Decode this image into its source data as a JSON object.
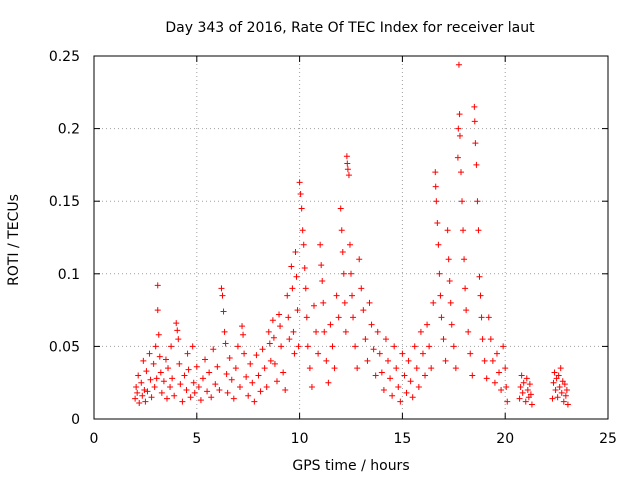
{
  "chart_data": {
    "type": "scatter",
    "title": "Day 343 of 2016, Rate Of TEC Index for receiver laut",
    "xlabel": "GPS time / hours",
    "ylabel": "ROTI / TECUs",
    "xlim": [
      0,
      25
    ],
    "ylim": [
      0,
      0.25
    ],
    "xticks": [
      0,
      5,
      10,
      15,
      20,
      25
    ],
    "xtick_labels": [
      "0",
      "5",
      "10",
      "15",
      "20",
      "25"
    ],
    "yticks": [
      0,
      0.05,
      0.1,
      0.15,
      0.2,
      0.25
    ],
    "ytick_labels": [
      "0",
      "0.05",
      "0.1",
      "0.15",
      "0.2",
      "0.25"
    ],
    "grid": true,
    "marker": "+",
    "color": "#ff0000",
    "series": [
      {
        "name": "ROTI",
        "points": [
          [
            2.0,
            0.014
          ],
          [
            2.05,
            0.022
          ],
          [
            2.1,
            0.018
          ],
          [
            2.15,
            0.03
          ],
          [
            2.2,
            0.011
          ],
          [
            2.3,
            0.025
          ],
          [
            2.35,
            0.016
          ],
          [
            2.4,
            0.04
          ],
          [
            2.45,
            0.02
          ],
          [
            2.5,
            0.012
          ],
          [
            2.55,
            0.033
          ],
          [
            2.6,
            0.019
          ],
          [
            2.7,
            0.045
          ],
          [
            2.75,
            0.027
          ],
          [
            2.8,
            0.015
          ],
          [
            2.9,
            0.038
          ],
          [
            2.95,
            0.022
          ],
          [
            3.0,
            0.05
          ],
          [
            3.05,
            0.028
          ],
          [
            3.1,
            0.092
          ],
          [
            3.1,
            0.075
          ],
          [
            3.15,
            0.058
          ],
          [
            3.2,
            0.043
          ],
          [
            3.25,
            0.032
          ],
          [
            3.3,
            0.018
          ],
          [
            3.4,
            0.026
          ],
          [
            3.5,
            0.041
          ],
          [
            3.55,
            0.014
          ],
          [
            3.6,
            0.035
          ],
          [
            3.7,
            0.022
          ],
          [
            3.75,
            0.05
          ],
          [
            3.8,
            0.028
          ],
          [
            3.9,
            0.016
          ],
          [
            4.0,
            0.066
          ],
          [
            4.05,
            0.061
          ],
          [
            4.1,
            0.055
          ],
          [
            4.15,
            0.038
          ],
          [
            4.2,
            0.024
          ],
          [
            4.3,
            0.012
          ],
          [
            4.4,
            0.03
          ],
          [
            4.5,
            0.02
          ],
          [
            4.55,
            0.045
          ],
          [
            4.6,
            0.034
          ],
          [
            4.7,
            0.015
          ],
          [
            4.8,
            0.05
          ],
          [
            4.85,
            0.025
          ],
          [
            4.9,
            0.018
          ],
          [
            5.0,
            0.036
          ],
          [
            5.1,
            0.022
          ],
          [
            5.2,
            0.013
          ],
          [
            5.3,
            0.028
          ],
          [
            5.4,
            0.041
          ],
          [
            5.5,
            0.019
          ],
          [
            5.6,
            0.032
          ],
          [
            5.7,
            0.015
          ],
          [
            5.8,
            0.048
          ],
          [
            5.9,
            0.024
          ],
          [
            6.0,
            0.036
          ],
          [
            6.1,
            0.02
          ],
          [
            6.2,
            0.09
          ],
          [
            6.25,
            0.085
          ],
          [
            6.3,
            0.074
          ],
          [
            6.35,
            0.06
          ],
          [
            6.4,
            0.052
          ],
          [
            6.45,
            0.031
          ],
          [
            6.5,
            0.018
          ],
          [
            6.6,
            0.042
          ],
          [
            6.7,
            0.027
          ],
          [
            6.8,
            0.014
          ],
          [
            6.9,
            0.035
          ],
          [
            7.0,
            0.05
          ],
          [
            7.1,
            0.022
          ],
          [
            7.2,
            0.064
          ],
          [
            7.25,
            0.058
          ],
          [
            7.3,
            0.045
          ],
          [
            7.4,
            0.029
          ],
          [
            7.5,
            0.016
          ],
          [
            7.6,
            0.038
          ],
          [
            7.7,
            0.025
          ],
          [
            7.8,
            0.012
          ],
          [
            7.9,
            0.044
          ],
          [
            8.0,
            0.03
          ],
          [
            8.1,
            0.019
          ],
          [
            8.2,
            0.048
          ],
          [
            8.3,
            0.035
          ],
          [
            8.4,
            0.022
          ],
          [
            8.5,
            0.06
          ],
          [
            8.55,
            0.052
          ],
          [
            8.6,
            0.04
          ],
          [
            8.7,
            0.068
          ],
          [
            8.75,
            0.056
          ],
          [
            8.8,
            0.038
          ],
          [
            8.9,
            0.026
          ],
          [
            9.0,
            0.072
          ],
          [
            9.05,
            0.064
          ],
          [
            9.1,
            0.05
          ],
          [
            9.2,
            0.032
          ],
          [
            9.3,
            0.02
          ],
          [
            9.4,
            0.085
          ],
          [
            9.45,
            0.07
          ],
          [
            9.5,
            0.055
          ],
          [
            9.6,
            0.105
          ],
          [
            9.65,
            0.09
          ],
          [
            9.7,
            0.06
          ],
          [
            9.75,
            0.045
          ],
          [
            9.8,
            0.115
          ],
          [
            9.85,
            0.098
          ],
          [
            9.9,
            0.075
          ],
          [
            9.95,
            0.05
          ],
          [
            10.0,
            0.163
          ],
          [
            10.05,
            0.155
          ],
          [
            10.1,
            0.145
          ],
          [
            10.15,
            0.13
          ],
          [
            10.2,
            0.12
          ],
          [
            10.25,
            0.104
          ],
          [
            10.3,
            0.09
          ],
          [
            10.35,
            0.07
          ],
          [
            10.4,
            0.05
          ],
          [
            10.5,
            0.035
          ],
          [
            10.6,
            0.022
          ],
          [
            10.7,
            0.078
          ],
          [
            10.8,
            0.06
          ],
          [
            10.9,
            0.045
          ],
          [
            11.0,
            0.12
          ],
          [
            11.05,
            0.106
          ],
          [
            11.1,
            0.095
          ],
          [
            11.15,
            0.08
          ],
          [
            11.2,
            0.06
          ],
          [
            11.3,
            0.04
          ],
          [
            11.4,
            0.025
          ],
          [
            11.5,
            0.065
          ],
          [
            11.6,
            0.05
          ],
          [
            11.7,
            0.035
          ],
          [
            11.8,
            0.085
          ],
          [
            11.9,
            0.07
          ],
          [
            12.0,
            0.145
          ],
          [
            12.05,
            0.13
          ],
          [
            12.1,
            0.115
          ],
          [
            12.15,
            0.1
          ],
          [
            12.2,
            0.08
          ],
          [
            12.25,
            0.06
          ],
          [
            12.3,
            0.181
          ],
          [
            12.32,
            0.176
          ],
          [
            12.35,
            0.172
          ],
          [
            12.4,
            0.168
          ],
          [
            12.45,
            0.12
          ],
          [
            12.5,
            0.1
          ],
          [
            12.55,
            0.085
          ],
          [
            12.6,
            0.07
          ],
          [
            12.7,
            0.05
          ],
          [
            12.8,
            0.035
          ],
          [
            12.9,
            0.11
          ],
          [
            13.0,
            0.09
          ],
          [
            13.1,
            0.075
          ],
          [
            13.2,
            0.055
          ],
          [
            13.3,
            0.04
          ],
          [
            13.4,
            0.08
          ],
          [
            13.5,
            0.065
          ],
          [
            13.6,
            0.048
          ],
          [
            13.7,
            0.03
          ],
          [
            13.8,
            0.06
          ],
          [
            13.9,
            0.045
          ],
          [
            14.0,
            0.032
          ],
          [
            14.1,
            0.02
          ],
          [
            14.2,
            0.055
          ],
          [
            14.3,
            0.04
          ],
          [
            14.4,
            0.028
          ],
          [
            14.5,
            0.016
          ],
          [
            14.6,
            0.05
          ],
          [
            14.7,
            0.035
          ],
          [
            14.8,
            0.022
          ],
          [
            14.9,
            0.012
          ],
          [
            15.0,
            0.045
          ],
          [
            15.1,
            0.03
          ],
          [
            15.2,
            0.018
          ],
          [
            15.3,
            0.04
          ],
          [
            15.4,
            0.026
          ],
          [
            15.5,
            0.015
          ],
          [
            15.6,
            0.05
          ],
          [
            15.7,
            0.035
          ],
          [
            15.8,
            0.022
          ],
          [
            15.9,
            0.06
          ],
          [
            16.0,
            0.045
          ],
          [
            16.1,
            0.03
          ],
          [
            16.2,
            0.065
          ],
          [
            16.3,
            0.05
          ],
          [
            16.4,
            0.035
          ],
          [
            16.5,
            0.08
          ],
          [
            16.6,
            0.17
          ],
          [
            16.62,
            0.16
          ],
          [
            16.65,
            0.15
          ],
          [
            16.7,
            0.135
          ],
          [
            16.75,
            0.12
          ],
          [
            16.8,
            0.1
          ],
          [
            16.85,
            0.085
          ],
          [
            16.9,
            0.07
          ],
          [
            17.0,
            0.055
          ],
          [
            17.1,
            0.04
          ],
          [
            17.2,
            0.13
          ],
          [
            17.25,
            0.11
          ],
          [
            17.3,
            0.095
          ],
          [
            17.35,
            0.08
          ],
          [
            17.4,
            0.065
          ],
          [
            17.5,
            0.05
          ],
          [
            17.6,
            0.035
          ],
          [
            17.7,
            0.18
          ],
          [
            17.72,
            0.2
          ],
          [
            17.75,
            0.244
          ],
          [
            17.78,
            0.21
          ],
          [
            17.8,
            0.195
          ],
          [
            17.85,
            0.17
          ],
          [
            17.9,
            0.15
          ],
          [
            17.95,
            0.13
          ],
          [
            18.0,
            0.11
          ],
          [
            18.05,
            0.09
          ],
          [
            18.1,
            0.075
          ],
          [
            18.2,
            0.06
          ],
          [
            18.3,
            0.045
          ],
          [
            18.4,
            0.03
          ],
          [
            18.5,
            0.215
          ],
          [
            18.52,
            0.205
          ],
          [
            18.55,
            0.19
          ],
          [
            18.6,
            0.175
          ],
          [
            18.65,
            0.15
          ],
          [
            18.7,
            0.13
          ],
          [
            18.75,
            0.098
          ],
          [
            18.8,
            0.085
          ],
          [
            18.85,
            0.07
          ],
          [
            18.9,
            0.055
          ],
          [
            19.0,
            0.04
          ],
          [
            19.1,
            0.028
          ],
          [
            19.2,
            0.07
          ],
          [
            19.3,
            0.055
          ],
          [
            19.4,
            0.04
          ],
          [
            19.5,
            0.025
          ],
          [
            19.6,
            0.045
          ],
          [
            19.7,
            0.032
          ],
          [
            19.8,
            0.02
          ],
          [
            19.9,
            0.05
          ],
          [
            20.0,
            0.035
          ],
          [
            20.05,
            0.022
          ],
          [
            20.1,
            0.012
          ],
          [
            20.7,
            0.014
          ],
          [
            20.75,
            0.022
          ],
          [
            20.8,
            0.03
          ],
          [
            20.85,
            0.018
          ],
          [
            20.9,
            0.025
          ],
          [
            21.0,
            0.012
          ],
          [
            21.05,
            0.028
          ],
          [
            21.1,
            0.02
          ],
          [
            21.15,
            0.015
          ],
          [
            21.2,
            0.024
          ],
          [
            21.25,
            0.017
          ],
          [
            21.3,
            0.01
          ],
          [
            22.3,
            0.014
          ],
          [
            22.35,
            0.025
          ],
          [
            22.4,
            0.032
          ],
          [
            22.45,
            0.02
          ],
          [
            22.5,
            0.028
          ],
          [
            22.55,
            0.015
          ],
          [
            22.6,
            0.03
          ],
          [
            22.65,
            0.022
          ],
          [
            22.7,
            0.035
          ],
          [
            22.75,
            0.018
          ],
          [
            22.8,
            0.026
          ],
          [
            22.85,
            0.012
          ],
          [
            22.9,
            0.024
          ],
          [
            22.95,
            0.016
          ],
          [
            23.0,
            0.02
          ],
          [
            23.05,
            0.01
          ]
        ]
      }
    ]
  }
}
